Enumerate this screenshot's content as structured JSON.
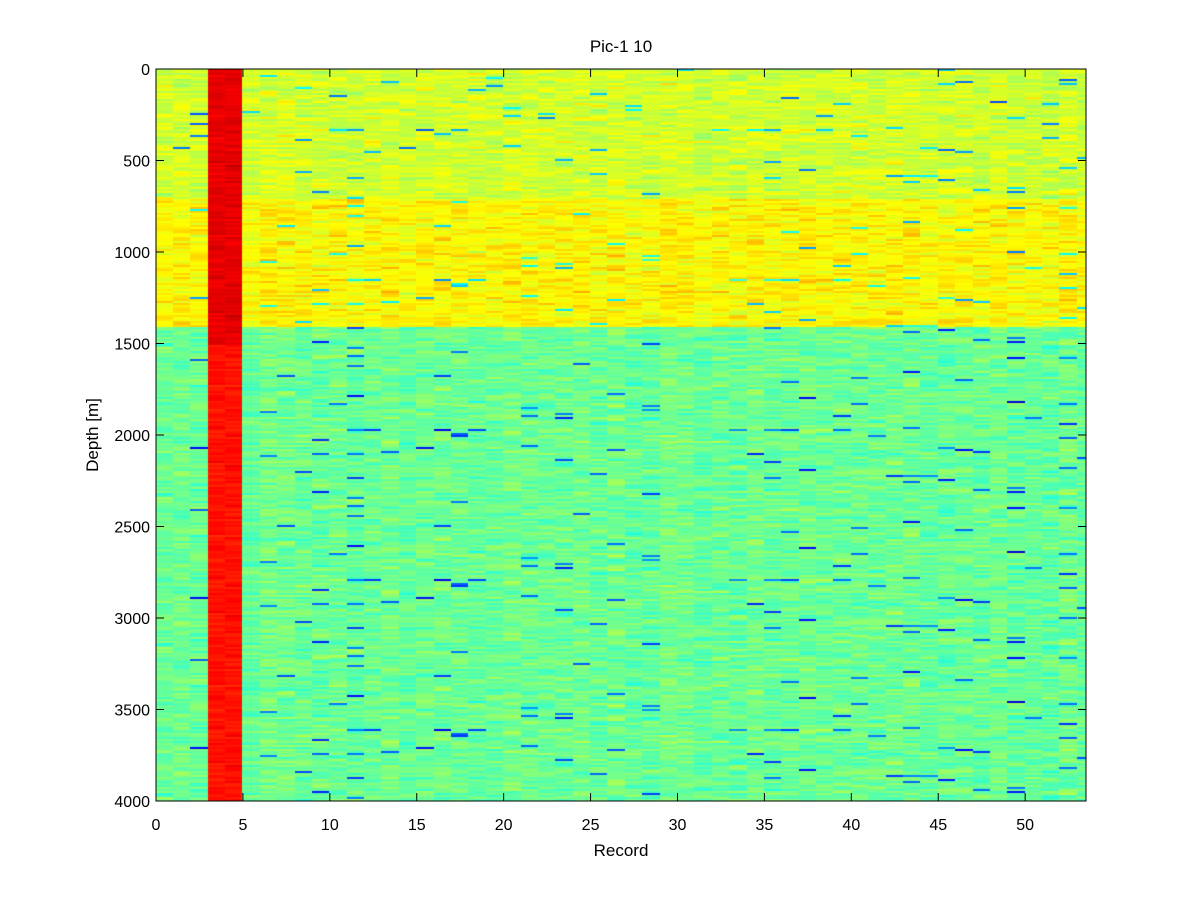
{
  "chart_data": {
    "type": "heatmap",
    "title": "Pic-1 10",
    "xlabel": "Record",
    "ylabel": "Depth [m]",
    "xlim": [
      0,
      53.5
    ],
    "ylim": [
      4000,
      0
    ],
    "y_axis_reversed": true,
    "xticks": [
      "0",
      "5",
      "10",
      "15",
      "20",
      "25",
      "30",
      "35",
      "40",
      "45",
      "50"
    ],
    "yticks": [
      "0",
      "500",
      "1000",
      "1500",
      "2000",
      "2500",
      "3000",
      "3500",
      "4000"
    ],
    "colormap": "jet",
    "grid": false,
    "colorbar": false,
    "depth_bands": [
      {
        "depth_from": 0,
        "depth_to": 700,
        "level": 0.58
      },
      {
        "depth_from": 700,
        "depth_to": 1400,
        "level": 0.63
      },
      {
        "depth_from": 1400,
        "depth_to": 4000,
        "level": 0.48
      }
    ],
    "high_value_column": {
      "record_from": 3.5,
      "record_to": 4.5,
      "level": 0.9
    }
  }
}
